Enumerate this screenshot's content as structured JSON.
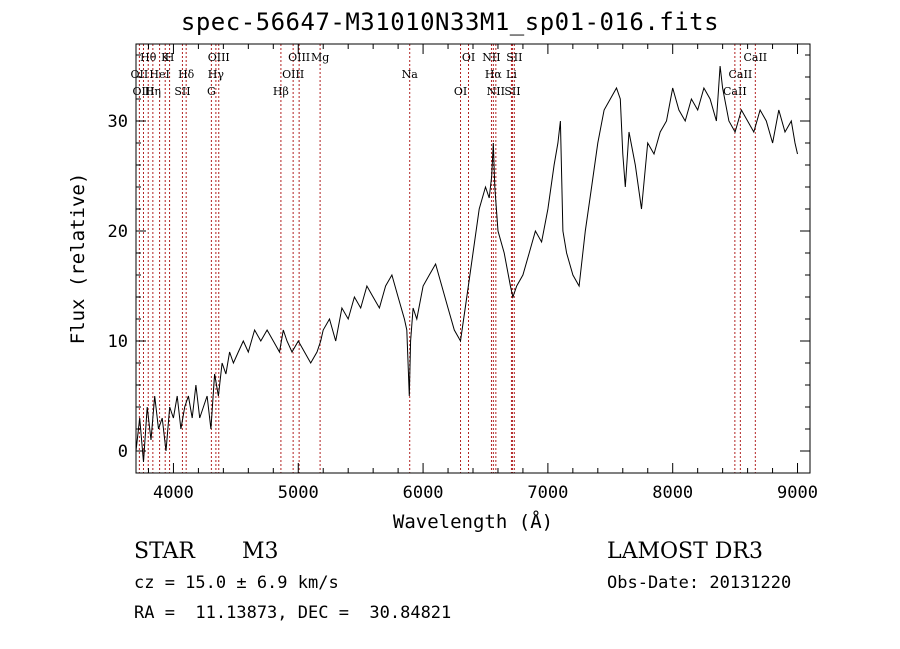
{
  "chart_data": {
    "type": "line",
    "title": "spec-56647-M31010N33M1_sp01-016.fits",
    "xlabel": "Wavelength (Å)",
    "ylabel": "Flux (relative)",
    "xlim": [
      3700,
      9100
    ],
    "ylim": [
      -2,
      37
    ],
    "xticks": [
      4000,
      5000,
      6000,
      7000,
      8000,
      9000
    ],
    "yticks": [
      0,
      10,
      20,
      30
    ],
    "xtick_labels": [
      "4000",
      "5000",
      "6000",
      "7000",
      "8000",
      "9000"
    ],
    "ytick_labels": [
      "0",
      "10",
      "20",
      "30"
    ],
    "series": [
      {
        "name": "flux",
        "x": [
          3700,
          3730,
          3760,
          3790,
          3820,
          3850,
          3880,
          3910,
          3940,
          3970,
          4000,
          4030,
          4060,
          4090,
          4120,
          4150,
          4180,
          4210,
          4240,
          4270,
          4300,
          4330,
          4360,
          4390,
          4420,
          4450,
          4480,
          4520,
          4560,
          4600,
          4650,
          4700,
          4750,
          4800,
          4850,
          4880,
          4910,
          4950,
          5000,
          5050,
          5100,
          5150,
          5180,
          5200,
          5250,
          5300,
          5350,
          5400,
          5450,
          5500,
          5550,
          5600,
          5650,
          5700,
          5750,
          5800,
          5850,
          5870,
          5890,
          5900,
          5920,
          5950,
          6000,
          6050,
          6100,
          6150,
          6200,
          6250,
          6300,
          6350,
          6400,
          6450,
          6500,
          6530,
          6550,
          6563,
          6575,
          6600,
          6650,
          6700,
          6720,
          6750,
          6800,
          6850,
          6900,
          6950,
          7000,
          7050,
          7080,
          7100,
          7120,
          7150,
          7200,
          7250,
          7300,
          7350,
          7400,
          7450,
          7500,
          7550,
          7580,
          7600,
          7620,
          7650,
          7700,
          7750,
          7800,
          7850,
          7900,
          7950,
          8000,
          8050,
          8100,
          8150,
          8200,
          8250,
          8300,
          8350,
          8380,
          8400,
          8450,
          8500,
          8550,
          8600,
          8650,
          8700,
          8750,
          8800,
          8850,
          8900,
          8950,
          8980,
          9000
        ],
        "y": [
          0,
          3,
          -1,
          4,
          1,
          5,
          2,
          3,
          0,
          4,
          3,
          5,
          2,
          4,
          5,
          3,
          6,
          3,
          4,
          5,
          2,
          7,
          5,
          8,
          7,
          9,
          8,
          9,
          10,
          9,
          11,
          10,
          11,
          10,
          9,
          11,
          10,
          9,
          10,
          9,
          8,
          9,
          10,
          11,
          12,
          10,
          13,
          12,
          14,
          13,
          15,
          14,
          13,
          15,
          16,
          14,
          12,
          11,
          5,
          10,
          13,
          12,
          15,
          16,
          17,
          15,
          13,
          11,
          10,
          14,
          18,
          22,
          24,
          23,
          25,
          28,
          24,
          20,
          18,
          15,
          14,
          15,
          16,
          18,
          20,
          19,
          22,
          26,
          28,
          30,
          20,
          18,
          16,
          15,
          20,
          24,
          28,
          31,
          32,
          33,
          32,
          27,
          24,
          29,
          26,
          22,
          28,
          27,
          29,
          30,
          33,
          31,
          30,
          32,
          31,
          33,
          32,
          30,
          35,
          33,
          30,
          29,
          31,
          30,
          29,
          31,
          30,
          28,
          31,
          29,
          30,
          28,
          27
        ]
      }
    ],
    "lines": [
      {
        "label": "Hθ",
        "x": 3798
      },
      {
        "label": "OII",
        "x": 3727
      },
      {
        "label": "OIII",
        "x": 3760
      },
      {
        "label": "K",
        "x": 3934
      },
      {
        "label": "HeI",
        "x": 3889
      },
      {
        "label": "Hη",
        "x": 3835
      },
      {
        "label": "H",
        "x": 3969
      },
      {
        "label": "Hδ",
        "x": 4102
      },
      {
        "label": "SII",
        "x": 4072
      },
      {
        "label": "OIII",
        "x": 4363
      },
      {
        "label": "Hγ",
        "x": 4340
      },
      {
        "label": "G",
        "x": 4304
      },
      {
        "label": "OIII",
        "x": 5007
      },
      {
        "label": "OIII",
        "x": 4959
      },
      {
        "label": "Hβ",
        "x": 4861
      },
      {
        "label": "Mg",
        "x": 5175
      },
      {
        "label": "Na",
        "x": 5893
      },
      {
        "label": "OI",
        "x": 6300
      },
      {
        "label": "OI",
        "x": 6364
      },
      {
        "label": "Hα",
        "x": 6563
      },
      {
        "label": "SII",
        "x": 6716
      },
      {
        "label": "NII",
        "x": 6548
      },
      {
        "label": "Li",
        "x": 6708
      },
      {
        "label": "NII",
        "x": 6583
      },
      {
        "label": "SII",
        "x": 6731
      },
      {
        "label": "CaII",
        "x": 8542
      },
      {
        "label": "CaII",
        "x": 8498
      },
      {
        "label": "CaII",
        "x": 8662
      }
    ]
  },
  "info": {
    "object_class": "STAR",
    "subclass": "M3",
    "survey": "LAMOST DR3",
    "cz": "cz = 15.0 ± 6.9 km/s",
    "obs_date": "Obs-Date: 20131220",
    "radec": "RA =  11.13873, DEC =  30.84821"
  }
}
